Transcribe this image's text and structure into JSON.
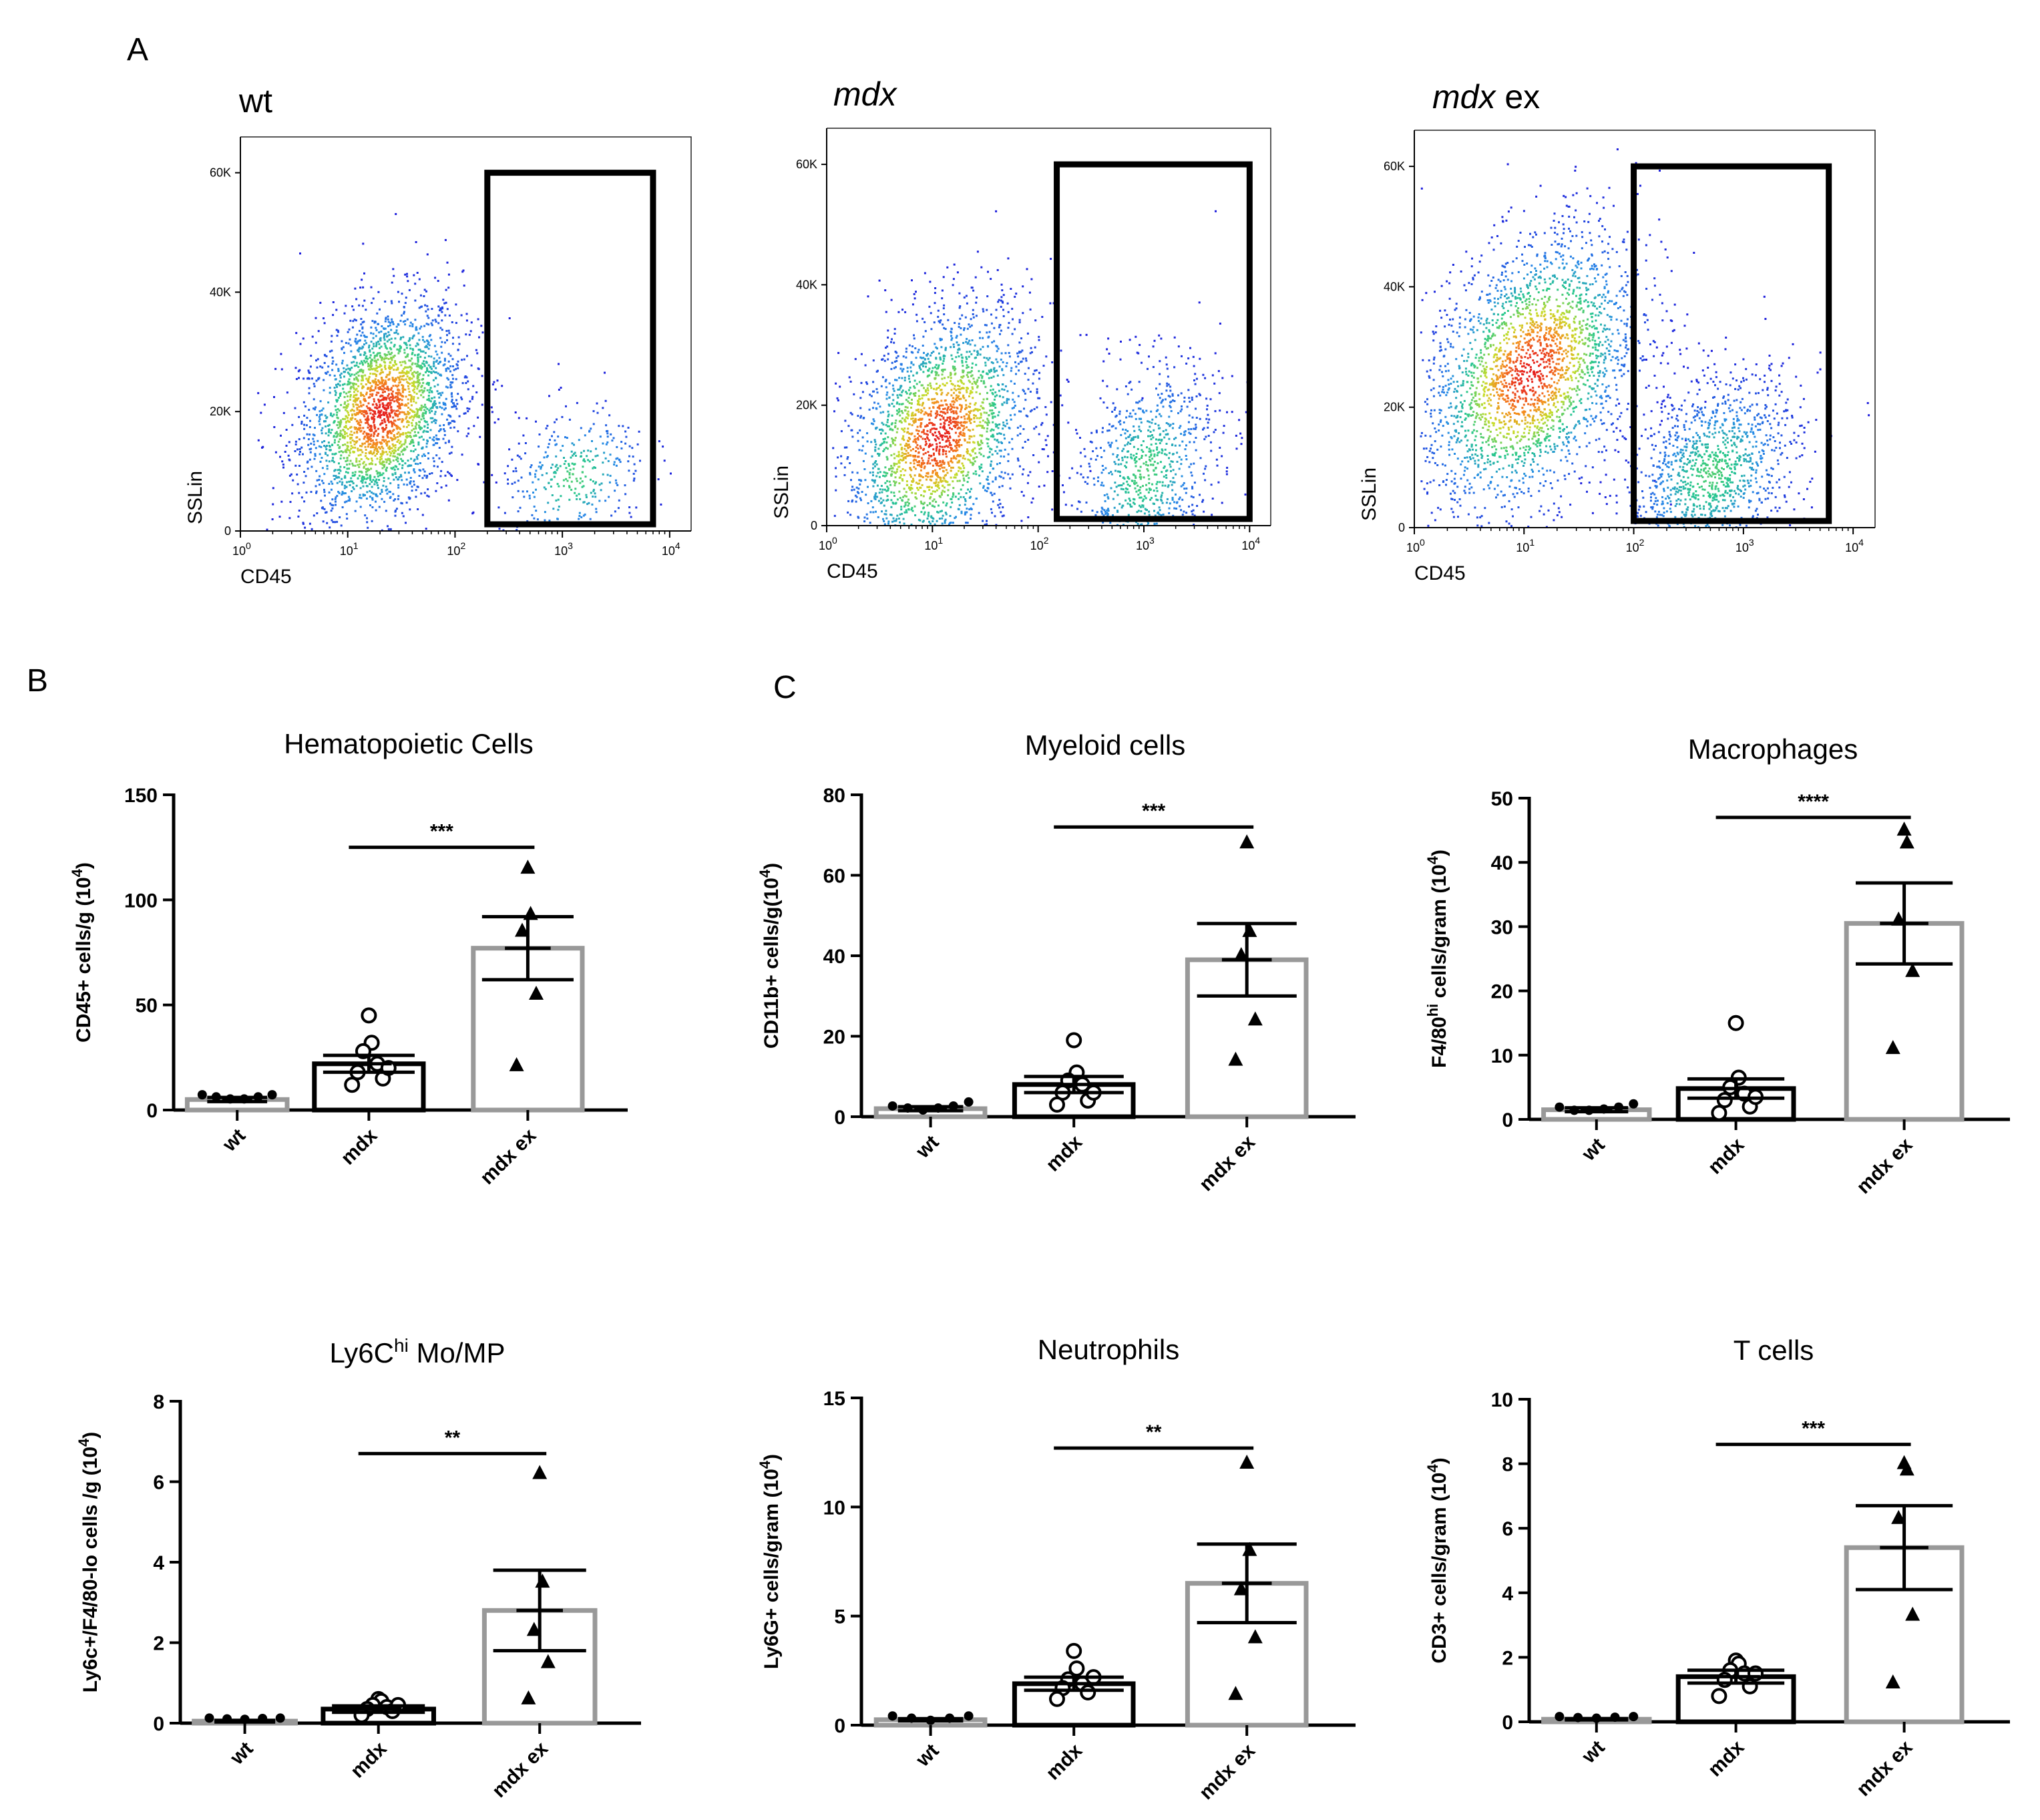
{
  "panel_letters": {
    "a": "A",
    "b": "B",
    "c": "C"
  },
  "flow_panels": [
    {
      "title": "wt",
      "title_italic": false,
      "title_suffix": "",
      "ylabel": "SSLin",
      "xlabel": "CD45",
      "yticks": [
        "0",
        "20K",
        "40K",
        "60K"
      ],
      "xticks_base": "10",
      "xticks_exp": [
        "0",
        "1",
        "2",
        "3",
        "4"
      ],
      "gate": {
        "x_from": 200,
        "x_to": 7000,
        "y_from": 0,
        "y_to": 60000
      },
      "populations": [
        {
          "name": "main",
          "cx": 1.3,
          "cy": 20000,
          "sx": 0.38,
          "sy": 9000,
          "n": 2600
        },
        {
          "name": "gated",
          "cx": 3.1,
          "cy": 9000,
          "sx": 0.35,
          "sy": 6000,
          "n": 350
        }
      ]
    },
    {
      "title": "mdx",
      "title_italic": true,
      "title_suffix": "",
      "ylabel": "SSLin",
      "xlabel": "CD45",
      "yticks": [
        "0",
        "20K",
        "40K",
        "60K"
      ],
      "xticks_base": "10",
      "xticks_exp": [
        "0",
        "1",
        "2",
        "3",
        "4"
      ],
      "gate": {
        "x_from": 150,
        "x_to": 10000,
        "y_from": 0,
        "y_to": 60000
      },
      "populations": [
        {
          "name": "main",
          "cx": 1.05,
          "cy": 15000,
          "sx": 0.45,
          "sy": 10000,
          "n": 2400
        },
        {
          "name": "gated",
          "cx": 3.0,
          "cy": 9000,
          "sx": 0.35,
          "sy": 9000,
          "n": 900
        }
      ]
    },
    {
      "title": "mdx",
      "title_italic": true,
      "title_suffix": " ex",
      "ylabel": "SSLin",
      "xlabel": "CD45",
      "yticks": [
        "0",
        "20K",
        "40K",
        "60K"
      ],
      "xticks_base": "10",
      "xticks_exp": [
        "0",
        "1",
        "2",
        "3",
        "4"
      ],
      "gate": {
        "x_from": 100,
        "x_to": 6000,
        "y_from": 0,
        "y_to": 60000
      },
      "populations": [
        {
          "name": "main",
          "cx": 1.05,
          "cy": 26000,
          "sx": 0.5,
          "sy": 11000,
          "n": 2600
        },
        {
          "name": "gated",
          "cx": 2.7,
          "cy": 9000,
          "sx": 0.4,
          "sy": 8000,
          "n": 1300
        }
      ]
    }
  ],
  "chart_data": [
    {
      "type": "bar",
      "title": "Hematopoietic  Cells",
      "ylabel_prefix": "CD45+ cells/g (10",
      "ylabel_sup": "4",
      "ylabel_suffix": ")",
      "ylim": [
        0,
        150
      ],
      "yticks": [
        0,
        50,
        100,
        150
      ],
      "categories": [
        "wt",
        "mdx",
        "mdx ex"
      ],
      "means": [
        5,
        22,
        77
      ],
      "sem": [
        1,
        4,
        15
      ],
      "points": [
        [
          6,
          5,
          4,
          4,
          5,
          6
        ],
        [
          45,
          32,
          28,
          22,
          18,
          15,
          12,
          20
        ],
        [
          115,
          93,
          85,
          55,
          21
        ]
      ],
      "significance": {
        "label": "***",
        "from": "mdx",
        "to": "mdx ex",
        "y": 125
      }
    },
    {
      "type": "bar",
      "title": "Myeloid cells",
      "ylabel_prefix": "CD11b+ cells/g(10",
      "ylabel_sup": "4",
      "ylabel_suffix": ")",
      "ylim": [
        0,
        80
      ],
      "yticks": [
        0,
        20,
        40,
        60,
        80
      ],
      "categories": [
        "wt",
        "mdx",
        "mdx ex"
      ],
      "means": [
        2,
        8,
        39
      ],
      "sem": [
        0.5,
        2,
        9
      ],
      "points": [
        [
          2,
          1.5,
          1,
          1.5,
          2,
          3
        ],
        [
          19,
          11,
          9,
          8,
          6,
          4,
          3,
          6
        ],
        [
          68,
          46,
          40,
          24,
          14
        ]
      ],
      "significance": {
        "label": "***",
        "from": "mdx",
        "to": "mdx ex",
        "y": 72
      }
    },
    {
      "type": "bar",
      "title": "Macrophages",
      "ylabel_prefix": "F4/80",
      "ylabel_sup": "hi",
      "ylabel_suffix": " cells/gram (10",
      "ylabel_sup2": "4",
      "ylabel_suffix2": ")",
      "ylim": [
        0,
        50
      ],
      "yticks": [
        0,
        10,
        20,
        30,
        40,
        50
      ],
      "categories": [
        "wt",
        "mdx",
        "mdx ex"
      ],
      "means": [
        1.5,
        4.8,
        30.5
      ],
      "sem": [
        0.3,
        1.5,
        6.3
      ],
      "points": [
        [
          1.5,
          1,
          1,
          1.2,
          1.5,
          2
        ],
        [
          15,
          6.5,
          5,
          4,
          3,
          2,
          1,
          3.5
        ],
        [
          45,
          43,
          31,
          23,
          11
        ]
      ],
      "significance": {
        "label": "****",
        "from": "mdx",
        "to": "mdx ex",
        "y": 47
      }
    },
    {
      "type": "bar",
      "title_prefix": "Ly6C",
      "title_sup": "hi",
      "title_suffix": " Mo/MP",
      "ylabel_prefix": "Ly6c+/F4/80-lo cells /g (10",
      "ylabel_sup": "4",
      "ylabel_suffix": ")",
      "ylim": [
        0,
        8
      ],
      "yticks": [
        0,
        2,
        4,
        6,
        8
      ],
      "categories": [
        "wt",
        "mdx",
        "mdx ex"
      ],
      "means": [
        0.05,
        0.35,
        2.8
      ],
      "sem": [
        0.02,
        0.08,
        1.0
      ],
      "points": [
        [
          0.06,
          0.04,
          0.03,
          0.05,
          0.06
        ],
        [
          0.6,
          0.55,
          0.45,
          0.4,
          0.35,
          0.3,
          0.2,
          0.45
        ],
        [
          6.2,
          3.5,
          2.3,
          1.5,
          0.6
        ]
      ],
      "significance": {
        "label": "**",
        "from": "mdx",
        "to": "mdx ex",
        "y": 6.7
      }
    },
    {
      "type": "bar",
      "title": "Neutrophils",
      "ylabel_prefix": "Ly6G+ cells/gram (10",
      "ylabel_sup": "4",
      "ylabel_suffix": ")",
      "ylim": [
        0,
        15
      ],
      "yticks": [
        0,
        5,
        10,
        15
      ],
      "categories": [
        "wt",
        "mdx",
        "mdx ex"
      ],
      "means": [
        0.25,
        1.9,
        6.5
      ],
      "sem": [
        0.05,
        0.3,
        1.8
      ],
      "points": [
        [
          0.3,
          0.2,
          0.1,
          0.2,
          0.3
        ],
        [
          3.4,
          2.6,
          2.1,
          1.9,
          1.7,
          1.5,
          1.2,
          2.2
        ],
        [
          12,
          8,
          6.2,
          4,
          1.4
        ]
      ],
      "significance": {
        "label": "**",
        "from": "mdx",
        "to": "mdx ex",
        "y": 12.7
      }
    },
    {
      "type": "bar",
      "title": "T cells",
      "ylabel_prefix": "CD3+ cells/gram (10",
      "ylabel_sup": "4",
      "ylabel_suffix": ")",
      "ylim": [
        0,
        10
      ],
      "yticks": [
        0,
        2,
        4,
        6,
        8,
        10
      ],
      "categories": [
        "wt",
        "mdx",
        "mdx ex"
      ],
      "means": [
        0.08,
        1.4,
        5.4
      ],
      "sem": [
        0.02,
        0.2,
        1.3
      ],
      "points": [
        [
          0.08,
          0.05,
          0.03,
          0.06,
          0.08
        ],
        [
          1.9,
          1.8,
          1.6,
          1.5,
          1.3,
          1.1,
          0.8,
          1.5
        ],
        [
          8,
          7.8,
          6.3,
          3.3,
          1.2
        ]
      ],
      "significance": {
        "label": "***",
        "from": "mdx",
        "to": "mdx ex",
        "y": 8.6
      }
    }
  ],
  "colors": {
    "axis": "#000000",
    "gray_bar": "#999999",
    "black_bar": "#000000"
  }
}
